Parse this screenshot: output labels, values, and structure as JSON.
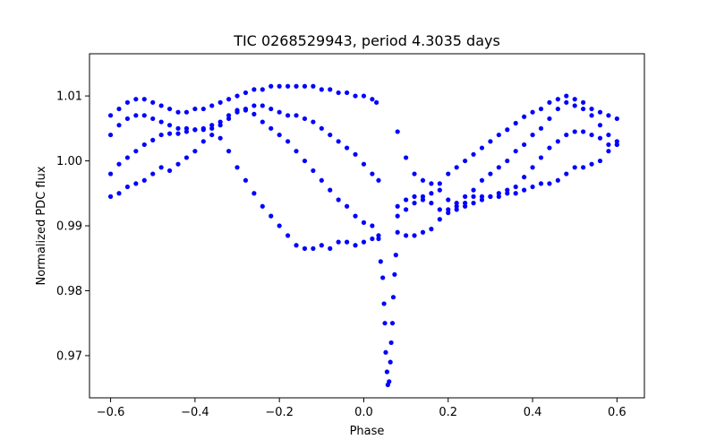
{
  "chart_data": {
    "type": "scatter",
    "title": "TIC 0268529943, period 4.3035 days",
    "xlabel": "Phase",
    "ylabel": "Normalized PDC flux",
    "xlim": [
      -0.65,
      0.665
    ],
    "ylim": [
      0.9635,
      1.0165
    ],
    "xticks": [
      -0.6,
      -0.4,
      -0.2,
      0.0,
      0.2,
      0.4,
      0.6
    ],
    "xtick_labels": [
      "−0.6",
      "−0.4",
      "−0.2",
      "0.0",
      "0.2",
      "0.4",
      "0.6"
    ],
    "yticks": [
      0.97,
      0.98,
      0.99,
      1.0,
      1.01
    ],
    "ytick_labels": [
      "0.97",
      "0.98",
      "0.99",
      "1.00",
      "1.01"
    ],
    "grid": false,
    "legend": "none",
    "marker_color": "#0000ff",
    "series": [
      {
        "points": [
          [
            -0.6,
            1.007
          ],
          [
            -0.58,
            1.008
          ],
          [
            -0.56,
            1.009
          ],
          [
            -0.54,
            1.0095
          ],
          [
            -0.52,
            1.0095
          ],
          [
            -0.5,
            1.009
          ],
          [
            -0.48,
            1.0085
          ],
          [
            -0.46,
            1.008
          ],
          [
            -0.44,
            1.0075
          ],
          [
            -0.42,
            1.0075
          ],
          [
            -0.4,
            1.008
          ],
          [
            -0.38,
            1.008
          ],
          [
            -0.36,
            1.0085
          ],
          [
            -0.34,
            1.009
          ],
          [
            -0.32,
            1.0095
          ],
          [
            -0.3,
            1.01
          ],
          [
            -0.28,
            1.0105
          ],
          [
            -0.26,
            1.011
          ],
          [
            -0.24,
            1.011
          ],
          [
            -0.22,
            1.0115
          ],
          [
            -0.2,
            1.0115
          ],
          [
            -0.18,
            1.0115
          ],
          [
            -0.16,
            1.0115
          ],
          [
            -0.14,
            1.0115
          ],
          [
            -0.12,
            1.0115
          ],
          [
            -0.1,
            1.011
          ],
          [
            -0.08,
            1.011
          ],
          [
            -0.06,
            1.0105
          ],
          [
            -0.04,
            1.0105
          ],
          [
            -0.02,
            1.01
          ],
          [
            0.0,
            1.01
          ],
          [
            0.02,
            1.0095
          ],
          [
            0.03,
            1.009
          ],
          [
            -0.6,
            1.004
          ],
          [
            -0.58,
            1.0055
          ],
          [
            -0.56,
            1.0065
          ],
          [
            -0.54,
            1.007
          ],
          [
            -0.52,
            1.007
          ],
          [
            -0.5,
            1.0065
          ],
          [
            -0.48,
            1.006
          ],
          [
            -0.46,
            1.0055
          ],
          [
            -0.44,
            1.005
          ],
          [
            -0.42,
            1.005
          ],
          [
            -0.4,
            1.0048
          ],
          [
            -0.38,
            1.0048
          ],
          [
            -0.36,
            1.005
          ],
          [
            -0.34,
            1.0055
          ],
          [
            -0.32,
            1.0065
          ],
          [
            -0.3,
            1.0075
          ],
          [
            -0.28,
            1.008
          ],
          [
            -0.26,
            1.0085
          ],
          [
            -0.24,
            1.0085
          ],
          [
            -0.22,
            1.008
          ],
          [
            -0.2,
            1.0075
          ],
          [
            -0.18,
            1.007
          ],
          [
            -0.16,
            1.007
          ],
          [
            -0.14,
            1.0065
          ],
          [
            -0.12,
            1.006
          ],
          [
            -0.1,
            1.005
          ],
          [
            -0.08,
            1.004
          ],
          [
            -0.06,
            1.003
          ],
          [
            -0.04,
            1.002
          ],
          [
            -0.02,
            1.001
          ],
          [
            0.0,
            0.9995
          ],
          [
            0.02,
            0.998
          ],
          [
            0.035,
            0.997
          ],
          [
            -0.6,
            0.998
          ],
          [
            -0.58,
            0.9995
          ],
          [
            -0.56,
            1.0005
          ],
          [
            -0.54,
            1.0015
          ],
          [
            -0.52,
            1.0025
          ],
          [
            -0.5,
            1.0032
          ],
          [
            -0.48,
            1.004
          ],
          [
            -0.46,
            1.0042
          ],
          [
            -0.44,
            1.0042
          ],
          [
            -0.42,
            1.0045
          ],
          [
            -0.4,
            1.0048
          ],
          [
            -0.38,
            1.005
          ],
          [
            -0.36,
            1.0055
          ],
          [
            -0.34,
            1.006
          ],
          [
            -0.32,
            1.007
          ],
          [
            -0.3,
            1.0078
          ],
          [
            -0.28,
            1.0078
          ],
          [
            -0.26,
            1.0072
          ],
          [
            -0.24,
            1.006
          ],
          [
            -0.22,
            1.005
          ],
          [
            -0.2,
            1.004
          ],
          [
            -0.18,
            1.003
          ],
          [
            -0.16,
            1.0015
          ],
          [
            -0.14,
            1.0
          ],
          [
            -0.12,
            0.9985
          ],
          [
            -0.1,
            0.997
          ],
          [
            -0.08,
            0.9955
          ],
          [
            -0.06,
            0.994
          ],
          [
            -0.04,
            0.993
          ],
          [
            -0.02,
            0.9915
          ],
          [
            0.0,
            0.9905
          ],
          [
            0.02,
            0.99
          ],
          [
            0.035,
            0.9885
          ],
          [
            -0.6,
            0.9945
          ],
          [
            -0.58,
            0.995
          ],
          [
            -0.56,
            0.996
          ],
          [
            -0.54,
            0.9965
          ],
          [
            -0.52,
            0.997
          ],
          [
            -0.5,
            0.998
          ],
          [
            -0.48,
            0.999
          ],
          [
            -0.46,
            0.9985
          ],
          [
            -0.44,
            0.9995
          ],
          [
            -0.42,
            1.0005
          ],
          [
            -0.4,
            1.0015
          ],
          [
            -0.38,
            1.003
          ],
          [
            -0.36,
            1.004
          ],
          [
            -0.34,
            1.0035
          ],
          [
            -0.32,
            1.0015
          ],
          [
            -0.3,
            0.999
          ],
          [
            -0.28,
            0.997
          ],
          [
            -0.26,
            0.995
          ],
          [
            -0.24,
            0.993
          ],
          [
            -0.22,
            0.9915
          ],
          [
            -0.2,
            0.99
          ],
          [
            -0.18,
            0.9885
          ],
          [
            -0.16,
            0.987
          ],
          [
            -0.14,
            0.9865
          ],
          [
            -0.12,
            0.9865
          ],
          [
            -0.1,
            0.987
          ],
          [
            -0.08,
            0.9865
          ],
          [
            -0.06,
            0.9875
          ],
          [
            -0.04,
            0.9875
          ],
          [
            -0.02,
            0.987
          ],
          [
            0.0,
            0.9875
          ],
          [
            0.02,
            0.988
          ],
          [
            0.035,
            0.988
          ],
          [
            0.04,
            0.9845
          ],
          [
            0.045,
            0.982
          ],
          [
            0.048,
            0.978
          ],
          [
            0.05,
            0.975
          ],
          [
            0.052,
            0.9705
          ],
          [
            0.055,
            0.9675
          ],
          [
            0.057,
            0.9655
          ],
          [
            0.06,
            0.966
          ],
          [
            0.063,
            0.969
          ],
          [
            0.065,
            0.972
          ],
          [
            0.068,
            0.975
          ],
          [
            0.07,
            0.979
          ],
          [
            0.073,
            0.9825
          ],
          [
            0.076,
            0.9855
          ],
          [
            0.08,
            0.9915
          ],
          [
            0.1,
            0.9925
          ],
          [
            0.12,
            0.9935
          ],
          [
            0.14,
            0.994
          ],
          [
            0.16,
            0.995
          ],
          [
            0.18,
            0.9965
          ],
          [
            0.2,
            0.998
          ],
          [
            0.22,
            0.999
          ],
          [
            0.24,
            1.0
          ],
          [
            0.26,
            1.001
          ],
          [
            0.28,
            1.002
          ],
          [
            0.3,
            1.003
          ],
          [
            0.32,
            1.004
          ],
          [
            0.34,
            1.0048
          ],
          [
            0.36,
            1.0058
          ],
          [
            0.38,
            1.0068
          ],
          [
            0.4,
            1.0075
          ],
          [
            0.42,
            1.008
          ],
          [
            0.44,
            1.009
          ],
          [
            0.46,
            1.0095
          ],
          [
            0.48,
            1.01
          ],
          [
            0.5,
            1.0095
          ],
          [
            0.52,
            1.009
          ],
          [
            0.54,
            1.008
          ],
          [
            0.56,
            1.0075
          ],
          [
            0.58,
            1.007
          ],
          [
            0.6,
            1.0065
          ],
          [
            0.08,
            0.993
          ],
          [
            0.1,
            0.994
          ],
          [
            0.12,
            0.9945
          ],
          [
            0.14,
            0.9945
          ],
          [
            0.16,
            0.9935
          ],
          [
            0.18,
            0.9925
          ],
          [
            0.2,
            0.9925
          ],
          [
            0.22,
            0.9935
          ],
          [
            0.24,
            0.9945
          ],
          [
            0.26,
            0.9955
          ],
          [
            0.28,
            0.997
          ],
          [
            0.3,
            0.998
          ],
          [
            0.32,
            0.999
          ],
          [
            0.34,
            1.0
          ],
          [
            0.36,
            1.0015
          ],
          [
            0.38,
            1.0025
          ],
          [
            0.4,
            1.004
          ],
          [
            0.42,
            1.005
          ],
          [
            0.44,
            1.0065
          ],
          [
            0.46,
            1.008
          ],
          [
            0.48,
            1.009
          ],
          [
            0.5,
            1.0085
          ],
          [
            0.52,
            1.008
          ],
          [
            0.54,
            1.007
          ],
          [
            0.56,
            1.0055
          ],
          [
            0.58,
            1.004
          ],
          [
            0.6,
            1.003
          ],
          [
            0.08,
            1.0045
          ],
          [
            0.1,
            1.0005
          ],
          [
            0.12,
            0.998
          ],
          [
            0.14,
            0.997
          ],
          [
            0.16,
            0.9965
          ],
          [
            0.18,
            0.9955
          ],
          [
            0.2,
            0.994
          ],
          [
            0.22,
            0.993
          ],
          [
            0.24,
            0.9935
          ],
          [
            0.26,
            0.9945
          ],
          [
            0.28,
            0.9945
          ],
          [
            0.3,
            0.9945
          ],
          [
            0.32,
            0.995
          ],
          [
            0.34,
            0.9955
          ],
          [
            0.36,
            0.996
          ],
          [
            0.38,
            0.9975
          ],
          [
            0.4,
            0.999
          ],
          [
            0.42,
            1.0005
          ],
          [
            0.44,
            1.002
          ],
          [
            0.46,
            1.003
          ],
          [
            0.48,
            1.004
          ],
          [
            0.5,
            1.0045
          ],
          [
            0.52,
            1.0045
          ],
          [
            0.54,
            1.004
          ],
          [
            0.56,
            1.0035
          ],
          [
            0.58,
            1.0025
          ],
          [
            0.6,
            1.0025
          ],
          [
            0.08,
            0.989
          ],
          [
            0.1,
            0.9885
          ],
          [
            0.12,
            0.9885
          ],
          [
            0.14,
            0.989
          ],
          [
            0.16,
            0.9895
          ],
          [
            0.18,
            0.991
          ],
          [
            0.2,
            0.992
          ],
          [
            0.22,
            0.9925
          ],
          [
            0.24,
            0.993
          ],
          [
            0.26,
            0.9935
          ],
          [
            0.28,
            0.994
          ],
          [
            0.3,
            0.9945
          ],
          [
            0.32,
            0.9945
          ],
          [
            0.34,
            0.995
          ],
          [
            0.36,
            0.995
          ],
          [
            0.38,
            0.9955
          ],
          [
            0.4,
            0.996
          ],
          [
            0.42,
            0.9965
          ],
          [
            0.44,
            0.9965
          ],
          [
            0.46,
            0.997
          ],
          [
            0.48,
            0.998
          ],
          [
            0.5,
            0.999
          ],
          [
            0.52,
            0.999
          ],
          [
            0.54,
            0.9995
          ],
          [
            0.56,
            1.0
          ],
          [
            0.58,
            1.0015
          ],
          [
            0.6,
            1.0025
          ]
        ]
      }
    ]
  }
}
